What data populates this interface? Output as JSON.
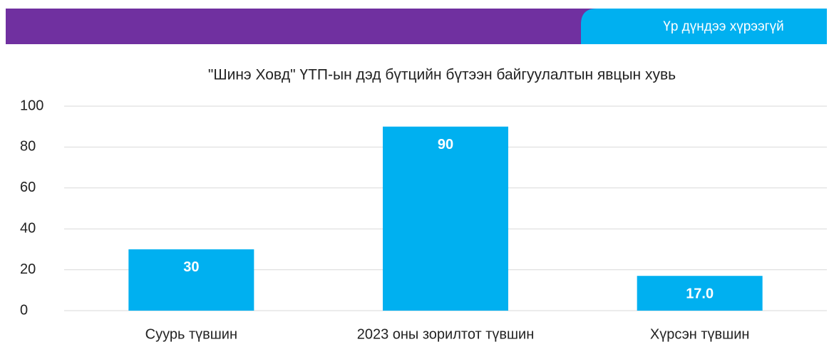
{
  "status": "Үр дүндээ хүрээгүй",
  "chart_data": {
    "type": "bar",
    "title": "\"Шинэ Ховд\" ҮТП-ын дэд бүтцийн бүтээн байгуулалтын явцын хувь",
    "categories": [
      "Суурь түвшин",
      "2023 оны зорилтот түвшин",
      "Хүрсэн түвшин"
    ],
    "values": [
      30,
      90,
      17
    ],
    "value_labels": [
      "30",
      "90",
      "17.0"
    ],
    "color": "#00b0f0",
    "ylim": [
      0,
      100
    ],
    "yticks": [
      0,
      20,
      40,
      60,
      80,
      100
    ],
    "grid": true
  }
}
